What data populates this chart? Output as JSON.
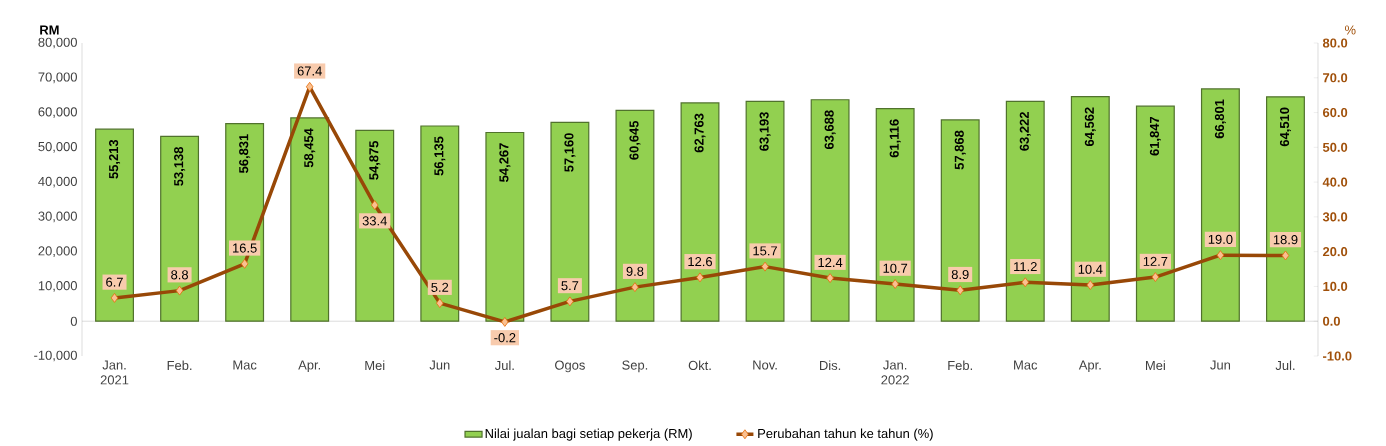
{
  "chart_data": {
    "type": "bar",
    "ylabel": "RM",
    "y2label": "%",
    "categories": [
      "Jan. 2021",
      "Feb.",
      "Mac",
      "Apr.",
      "Mei",
      "Jun",
      "Jul.",
      "Ogos",
      "Sep.",
      "Okt.",
      "Nov.",
      "Dis.",
      "Jan. 2022",
      "Feb.",
      "Mac",
      "Apr.",
      "Mei",
      "Jun",
      "Jul."
    ],
    "series": [
      {
        "name": "Nilai jualan bagi setiap pekerja (RM)",
        "color": "#92d050",
        "values": [
          55213,
          53138,
          56831,
          58454,
          54875,
          56135,
          54267,
          57160,
          60645,
          62763,
          63193,
          63688,
          61116,
          57868,
          63222,
          64562,
          61847,
          66801,
          64510
        ],
        "value_labels": [
          "55,213",
          "53,138",
          "56,831",
          "58,454",
          "54,875",
          "56,135",
          "54,267",
          "57,160",
          "60,645",
          "62,763",
          "63,193",
          "63,688",
          "61,116",
          "57,868",
          "63,222",
          "64,562",
          "61,847",
          "66,801",
          "64,510"
        ]
      },
      {
        "name": "Perubahan tahun ke tahun (%)",
        "type": "line",
        "axis": "y2",
        "marker": "diamond",
        "color": "#984807",
        "values": [
          6.7,
          8.8,
          16.5,
          67.4,
          33.4,
          5.2,
          -0.2,
          5.7,
          9.8,
          12.6,
          15.7,
          12.4,
          10.7,
          8.9,
          11.2,
          10.4,
          12.7,
          19.0,
          18.9
        ],
        "value_labels": [
          "6.7",
          "8.8",
          "16.5",
          "67.4",
          "33.4",
          "5.2",
          "-0.2",
          "5.7",
          "9.8",
          "12.6",
          "15.7",
          "12.4",
          "10.7",
          "8.9",
          "11.2",
          "10.4",
          "12.7",
          "19.0",
          "18.9"
        ]
      }
    ],
    "ylim": [
      -10000,
      80000
    ],
    "yticks": [
      {
        "value": -10000,
        "label": "-10,000"
      },
      0,
      {
        "value": 10000,
        "label": "10,000"
      },
      {
        "value": 20000,
        "label": "20,000"
      },
      {
        "value": 30000,
        "label": "30,000"
      },
      {
        "value": 40000,
        "label": "40,000"
      },
      {
        "value": 50000,
        "label": "50,000"
      },
      {
        "value": 60000,
        "label": "60,000"
      },
      {
        "value": 70000,
        "label": "70,000"
      },
      {
        "value": 80000,
        "label": "80,000"
      }
    ],
    "y2lim": [
      -10,
      80
    ],
    "y2ticks": [
      {
        "value": -10,
        "label": "-10.0"
      },
      {
        "value": 0,
        "label": "0.0"
      },
      {
        "value": 10,
        "label": "10.0"
      },
      {
        "value": 20,
        "label": "20.0"
      },
      {
        "value": 30,
        "label": "30.0"
      },
      {
        "value": 40,
        "label": "40.0"
      },
      {
        "value": 50,
        "label": "50.0"
      },
      {
        "value": 60,
        "label": "60.0"
      },
      {
        "value": 70,
        "label": "70.0"
      },
      {
        "value": 80,
        "label": "80.0"
      }
    ],
    "legend": "bottom"
  }
}
